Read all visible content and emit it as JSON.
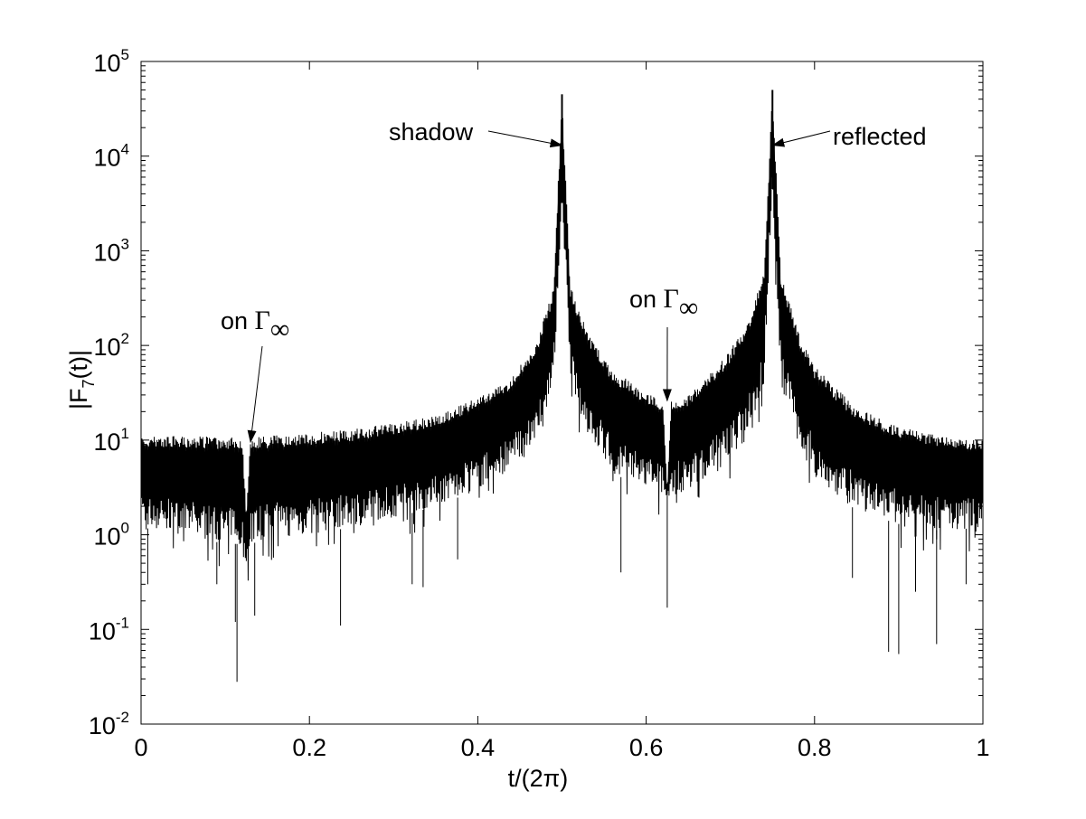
{
  "chart_data": {
    "type": "line",
    "title": "",
    "xlabel": "t/(2π)",
    "ylabel": "|F",
    "ylabel_sub": "7",
    "ylabel_tail": "(t)|",
    "xlim": [
      0,
      1
    ],
    "ylim": [
      0.01,
      100000
    ],
    "yscale": "log",
    "grid": false,
    "line_color": "#000000",
    "x_ticks": [
      {
        "value": 0,
        "label": "0"
      },
      {
        "value": 0.2,
        "label": "0.2"
      },
      {
        "value": 0.4,
        "label": "0.4"
      },
      {
        "value": 0.6,
        "label": "0.6"
      },
      {
        "value": 0.8,
        "label": "0.8"
      },
      {
        "value": 1,
        "label": "1"
      }
    ],
    "y_ticks": [
      {
        "value": 0.01,
        "base": "10",
        "exp": "-2"
      },
      {
        "value": 0.1,
        "base": "10",
        "exp": "-1"
      },
      {
        "value": 1,
        "base": "10",
        "exp": "0"
      },
      {
        "value": 10,
        "base": "10",
        "exp": "1"
      },
      {
        "value": 100,
        "base": "10",
        "exp": "2"
      },
      {
        "value": 1000,
        "base": "10",
        "exp": "3"
      },
      {
        "value": 10000,
        "base": "10",
        "exp": "4"
      },
      {
        "value": 100000,
        "base": "10",
        "exp": "5"
      }
    ],
    "series": [
      {
        "envelope_x": [
          0.0,
          0.05,
          0.1,
          0.12,
          0.125,
          0.13,
          0.15,
          0.2,
          0.25,
          0.3,
          0.35,
          0.4,
          0.44,
          0.47,
          0.49,
          0.5,
          0.51,
          0.53,
          0.56,
          0.6,
          0.62,
          0.625,
          0.63,
          0.65,
          0.68,
          0.7,
          0.72,
          0.74,
          0.75,
          0.76,
          0.78,
          0.8,
          0.85,
          0.9,
          0.95,
          1.0
        ],
        "envelope_upper": [
          11,
          11,
          11,
          11,
          1.7,
          11,
          11,
          12,
          13,
          15,
          18,
          28,
          45,
          110,
          400,
          45000,
          420,
          140,
          55,
          32,
          27,
          2.8,
          27,
          30,
          55,
          90,
          180,
          600,
          50000,
          560,
          150,
          60,
          22,
          14,
          11,
          10
        ],
        "envelope_lower": [
          1.2,
          1.0,
          0.8,
          0.8,
          0.4,
          0.8,
          0.9,
          1.0,
          1.2,
          1.5,
          2.0,
          3.0,
          5.0,
          10,
          40,
          3200,
          40,
          12,
          4.5,
          3.0,
          2.5,
          2.6,
          2.5,
          3.0,
          4.5,
          6.0,
          10,
          40,
          4500,
          40,
          9.0,
          4.0,
          1.8,
          1.3,
          1.1,
          1.2
        ],
        "deep_spikes": [
          {
            "x": 0.008,
            "y": 0.3
          },
          {
            "x": 0.09,
            "y": 0.3
          },
          {
            "x": 0.112,
            "y": 0.12
          },
          {
            "x": 0.114,
            "y": 0.028
          },
          {
            "x": 0.135,
            "y": 0.14
          },
          {
            "x": 0.237,
            "y": 0.11
          },
          {
            "x": 0.322,
            "y": 0.3
          },
          {
            "x": 0.335,
            "y": 0.28
          },
          {
            "x": 0.376,
            "y": 0.55
          },
          {
            "x": 0.57,
            "y": 0.4
          },
          {
            "x": 0.625,
            "y": 0.17
          },
          {
            "x": 0.845,
            "y": 0.35
          },
          {
            "x": 0.888,
            "y": 0.058
          },
          {
            "x": 0.9,
            "y": 0.055
          },
          {
            "x": 0.92,
            "y": 0.25
          },
          {
            "x": 0.945,
            "y": 0.07
          },
          {
            "x": 0.98,
            "y": 0.3
          }
        ]
      }
    ],
    "annotations": [
      {
        "text": "shadow",
        "tip": {
          "x": 0.5,
          "y": 13000
        }
      },
      {
        "text": "reflected",
        "tip": {
          "x": 0.75,
          "y": 13000
        }
      },
      {
        "text": "on ",
        "symbol": "Γ",
        "sub": "∞",
        "tip": {
          "x": 0.13,
          "y": 9.5
        }
      },
      {
        "text": "on ",
        "symbol": "Γ",
        "sub": "∞",
        "tip": {
          "x": 0.625,
          "y": 26
        }
      }
    ]
  }
}
